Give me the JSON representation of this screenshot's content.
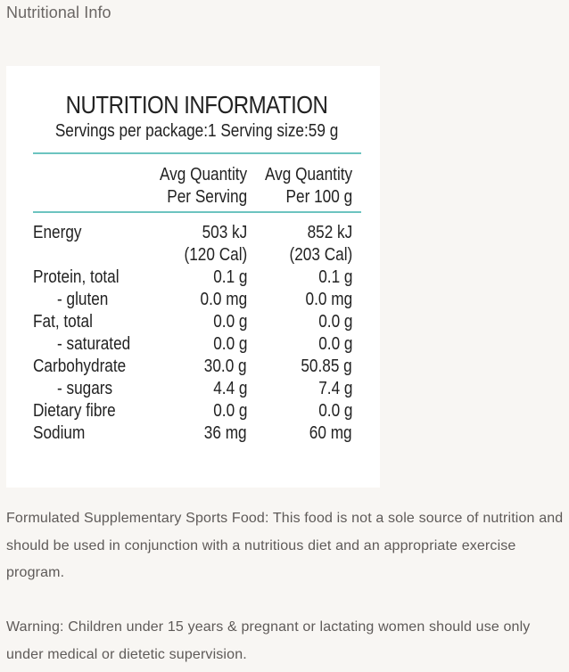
{
  "section_title": "Nutritional Info",
  "panel": {
    "title": "NUTRITION INFORMATION",
    "subtitle": "Servings per package:1 Serving size:59 g",
    "col1_line1": "Avg Quantity",
    "col1_line2": "Per Serving",
    "col2_line1": "Avg Quantity",
    "col2_line2": "Per 100 g",
    "rows": [
      {
        "label": "Energy",
        "serving": "503 kJ",
        "serving2": "(120 Cal)",
        "per100": "852 kJ",
        "per100_2": "(203 Cal)"
      },
      {
        "label": "Protein, total",
        "serving": "0.1 g",
        "per100": "0.1 g"
      },
      {
        "label": "- gluten",
        "serving": "0.0 mg",
        "per100": "0.0 mg"
      },
      {
        "label": "Fat, total",
        "serving": "0.0 g",
        "per100": "0.0 g"
      },
      {
        "label": "- saturated",
        "serving": "0.0 g",
        "per100": "0.0 g"
      },
      {
        "label": "Carbohydrate",
        "serving": "30.0 g",
        "per100": "50.85 g"
      },
      {
        "label": "- sugars",
        "serving": "4.4 g",
        "per100": "7.4 g"
      },
      {
        "label": "Dietary fibre",
        "serving": "0.0 g",
        "per100": "0.0 g"
      },
      {
        "label": "Sodium",
        "serving": "36 mg",
        "per100": "60 mg"
      }
    ]
  },
  "paragraphs": {
    "formulated": "Formulated Supplementary Sports Food: This food is not a sole source of nutrition and should be used in conjunction with a nutritious diet and an appropriate exercise program.",
    "warning": "Warning: Children under 15 years & pregnant or lactating women should use only under medical or dietetic supervision."
  },
  "colors": {
    "background": "#f8f6f3",
    "panel": "#ffffff",
    "rule": "#6cc4c0"
  }
}
